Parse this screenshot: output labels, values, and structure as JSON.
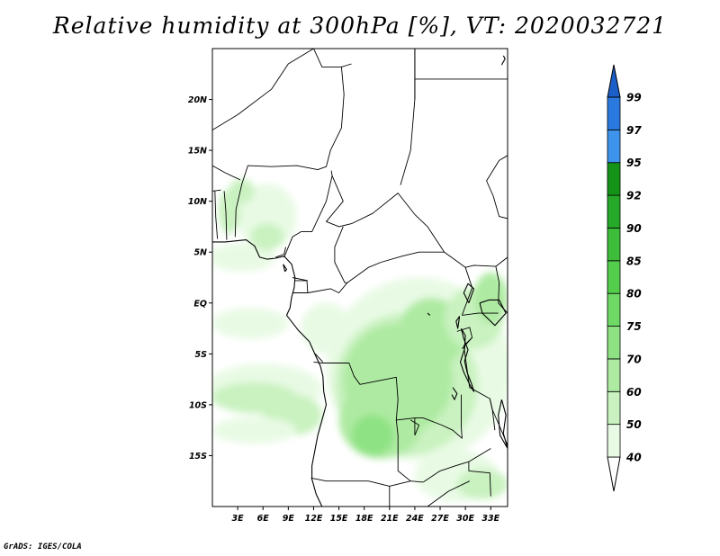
{
  "title": "Relative humidity at 300hPa [%], VT: 2020032721",
  "footer": "GrADS: IGES/COLA",
  "map": {
    "projection": "lat-lon",
    "lon_range": [
      0,
      35
    ],
    "lat_range": [
      -20,
      25
    ],
    "lat_ticks": [
      {
        "value": 20,
        "label": "20N"
      },
      {
        "value": 15,
        "label": "15N"
      },
      {
        "value": 10,
        "label": "10N"
      },
      {
        "value": 5,
        "label": "5N"
      },
      {
        "value": 0,
        "label": "EQ"
      },
      {
        "value": -5,
        "label": "5S"
      },
      {
        "value": -10,
        "label": "10S"
      },
      {
        "value": -15,
        "label": "15S"
      }
    ],
    "lon_ticks": [
      {
        "value": 3,
        "label": "3E"
      },
      {
        "value": 6,
        "label": "6E"
      },
      {
        "value": 9,
        "label": "9E"
      },
      {
        "value": 12,
        "label": "12E"
      },
      {
        "value": 15,
        "label": "15E"
      },
      {
        "value": 18,
        "label": "18E"
      },
      {
        "value": 21,
        "label": "21E"
      },
      {
        "value": 24,
        "label": "24E"
      },
      {
        "value": 27,
        "label": "27E"
      },
      {
        "value": 30,
        "label": "30E"
      },
      {
        "value": 33,
        "label": "33E"
      }
    ]
  },
  "colorbar": {
    "levels": [
      {
        "label": "40",
        "color": "#e8fae4"
      },
      {
        "label": "50",
        "color": "#c9f2c0"
      },
      {
        "label": "60",
        "color": "#aeeaa2"
      },
      {
        "label": "70",
        "color": "#8ee283"
      },
      {
        "label": "75",
        "color": "#6fd966"
      },
      {
        "label": "80",
        "color": "#54cc4c"
      },
      {
        "label": "85",
        "color": "#3dbd3a"
      },
      {
        "label": "90",
        "color": "#26a828"
      },
      {
        "label": "92",
        "color": "#159218"
      },
      {
        "label": "95",
        "color": "#3d94ea"
      },
      {
        "label": "97",
        "color": "#2a79de"
      },
      {
        "label": "99",
        "color": "#1c5fc8"
      }
    ],
    "below_color": "#ffffff",
    "above_color": "#1c5fc8"
  },
  "humidity_regions": [
    {
      "lon": 6.5,
      "lat": 8.5,
      "rx": 3.5,
      "ry": 3.2,
      "level": 0
    },
    {
      "lon": 3.5,
      "lat": 4.5,
      "rx": 4,
      "ry": 1.4,
      "level": 0
    },
    {
      "lon": 6.5,
      "lat": 6.5,
      "rx": 2,
      "ry": 1.3,
      "level": 1
    },
    {
      "lon": 2.0,
      "lat": 9.0,
      "rx": 1.3,
      "ry": 2.2,
      "level": 1
    },
    {
      "lon": 3.5,
      "lat": 11.0,
      "rx": 1.5,
      "ry": 1.2,
      "level": 1
    },
    {
      "lon": 24.5,
      "lat": -6.5,
      "rx": 11,
      "ry": 9,
      "level": 0
    },
    {
      "lon": 23,
      "lat": -8,
      "rx": 8.5,
      "ry": 7,
      "level": 1
    },
    {
      "lon": 22,
      "lat": -7.5,
      "rx": 6.5,
      "ry": 5.5,
      "level": 2
    },
    {
      "lon": 20,
      "lat": -11.5,
      "rx": 5,
      "ry": 3.8,
      "level": 2
    },
    {
      "lon": 26,
      "lat": -3,
      "rx": 4,
      "ry": 3.5,
      "level": 2
    },
    {
      "lon": 19,
      "lat": -13,
      "rx": 2.5,
      "ry": 2,
      "level": 3
    },
    {
      "lon": 31,
      "lat": -1.5,
      "rx": 3.5,
      "ry": 3,
      "level": 1
    },
    {
      "lon": 33,
      "lat": 0.5,
      "rx": 2,
      "ry": 2.5,
      "level": 2
    },
    {
      "lon": 6,
      "lat": -8.5,
      "rx": 7,
      "ry": 2.5,
      "level": 0
    },
    {
      "lon": 5,
      "lat": -9.3,
      "rx": 5,
      "ry": 1.5,
      "level": 1
    },
    {
      "lon": 9.5,
      "lat": -11,
      "rx": 3.5,
      "ry": 2,
      "level": 1
    },
    {
      "lon": 5,
      "lat": -12.5,
      "rx": 5,
      "ry": 1.3,
      "level": 0
    },
    {
      "lon": 13.5,
      "lat": -2.5,
      "rx": 3,
      "ry": 2.5,
      "level": 0
    },
    {
      "lon": 4.5,
      "lat": -2,
      "rx": 4.5,
      "ry": 1.5,
      "level": 0
    },
    {
      "lon": 29,
      "lat": -17,
      "rx": 5,
      "ry": 2.5,
      "level": 0
    },
    {
      "lon": 32,
      "lat": -17.8,
      "rx": 3,
      "ry": 1.5,
      "level": 1
    }
  ],
  "boundaries": [
    [
      [
        0,
        17
      ],
      [
        3,
        18.5
      ],
      [
        7,
        21
      ],
      [
        9,
        23.5
      ],
      [
        12,
        25
      ]
    ],
    [
      [
        12,
        25
      ],
      [
        13,
        23.2
      ],
      [
        15.3,
        23.2
      ],
      [
        16.5,
        23.5
      ]
    ],
    [
      [
        15.3,
        23.2
      ],
      [
        15.6,
        20.5
      ],
      [
        15.3,
        17.2
      ],
      [
        14,
        15
      ],
      [
        13.5,
        13.4
      ],
      [
        12.5,
        13.1
      ],
      [
        10,
        13.5
      ],
      [
        7,
        13.4
      ],
      [
        4.2,
        13.5
      ],
      [
        3.5,
        11.7
      ],
      [
        2.8,
        9.2
      ],
      [
        2.7,
        6.5
      ]
    ],
    [
      [
        0,
        13.5
      ],
      [
        1.5,
        12.8
      ],
      [
        3.3,
        12.1
      ]
    ],
    [
      [
        0,
        11
      ],
      [
        1,
        11.1
      ]
    ],
    [
      [
        0.3,
        11
      ],
      [
        0.4,
        8.5
      ],
      [
        0.6,
        6.3
      ]
    ],
    [
      [
        1.7,
        6.2
      ],
      [
        1.6,
        9
      ],
      [
        1.4,
        11
      ]
    ],
    [
      [
        8.5,
        4.5
      ],
      [
        9.5,
        6.5
      ],
      [
        10.5,
        7
      ],
      [
        11.8,
        7
      ],
      [
        13.5,
        10
      ],
      [
        14.2,
        12.5
      ],
      [
        14.1,
        13
      ]
    ],
    [
      [
        14.2,
        12.5
      ],
      [
        15.5,
        10
      ],
      [
        13.5,
        8
      ],
      [
        15,
        7.5
      ],
      [
        16.5,
        7.8
      ],
      [
        19,
        8.8
      ],
      [
        22,
        10.8
      ],
      [
        24,
        8.7
      ],
      [
        25.5,
        7.5
      ],
      [
        27.5,
        5
      ]
    ],
    [
      [
        15.5,
        7.5
      ],
      [
        14.5,
        5.5
      ],
      [
        14.5,
        4
      ],
      [
        15.7,
        2
      ],
      [
        16,
        2
      ]
    ],
    [
      [
        16,
        2
      ],
      [
        18.5,
        3.5
      ],
      [
        20,
        4
      ],
      [
        22.5,
        4.6
      ],
      [
        24.5,
        5
      ],
      [
        27.5,
        5
      ]
    ],
    [
      [
        16,
        2
      ],
      [
        15,
        1
      ],
      [
        14,
        1.4
      ],
      [
        11.3,
        1
      ]
    ],
    [
      [
        11.3,
        1
      ],
      [
        11.2,
        2.2
      ],
      [
        9.8,
        2.2
      ]
    ],
    [
      [
        9.5,
        1
      ],
      [
        11.3,
        1
      ]
    ],
    [
      [
        11.3,
        2.2
      ],
      [
        9.5,
        2.5
      ]
    ],
    [
      [
        22.3,
        11.6
      ],
      [
        23.5,
        15
      ],
      [
        24,
        20
      ],
      [
        24,
        25
      ]
    ],
    [
      [
        24,
        22
      ],
      [
        25,
        22
      ],
      [
        35,
        22
      ]
    ],
    [
      [
        24,
        20
      ],
      [
        24,
        25
      ]
    ],
    [
      [
        35,
        8.3
      ],
      [
        34,
        8.5
      ],
      [
        33.3,
        10.5
      ],
      [
        32.5,
        12
      ],
      [
        34,
        14
      ],
      [
        35,
        14.5
      ]
    ],
    [
      [
        27.5,
        5
      ],
      [
        30,
        3.5
      ],
      [
        31,
        3.7
      ],
      [
        33.6,
        3.6
      ],
      [
        35,
        4.5
      ]
    ],
    [
      [
        30,
        3.5
      ],
      [
        30.8,
        1.5
      ],
      [
        29.6,
        -1.2
      ]
    ],
    [
      [
        33.6,
        3.6
      ],
      [
        34,
        2
      ],
      [
        33.9,
        0
      ],
      [
        35,
        -1
      ]
    ],
    [
      [
        29.6,
        -1.2
      ],
      [
        30.6,
        -1.1
      ],
      [
        31.5,
        -1
      ],
      [
        33.9,
        -1
      ]
    ],
    [
      [
        29,
        -2.8
      ],
      [
        30.5,
        -2.4
      ],
      [
        30.8,
        -3.4
      ],
      [
        29.6,
        -4.5
      ]
    ],
    [
      [
        30.8,
        -3.4
      ],
      [
        29.8,
        -4.2
      ],
      [
        30.5,
        -8.3
      ],
      [
        32.9,
        -9.4
      ],
      [
        33.2,
        -10.5
      ],
      [
        33.5,
        -12.5
      ]
    ],
    [
      [
        12,
        -5.8
      ],
      [
        13,
        -5.9
      ],
      [
        16.2,
        -5.9
      ],
      [
        16.8,
        -7.2
      ],
      [
        17.5,
        -8
      ],
      [
        21.8,
        -7.3
      ],
      [
        22,
        -9.5
      ],
      [
        21.8,
        -11.5
      ],
      [
        24,
        -11.3
      ],
      [
        24,
        -13
      ]
    ],
    [
      [
        13.1,
        -5.8
      ],
      [
        12.2,
        -5
      ]
    ],
    [
      [
        11.7,
        -17.2
      ],
      [
        13.5,
        -17.5
      ],
      [
        18.5,
        -17.5
      ],
      [
        21,
        -18
      ],
      [
        23.5,
        -17.5
      ],
      [
        25,
        -17.6
      ]
    ],
    [
      [
        21.8,
        -11.5
      ],
      [
        22,
        -13
      ],
      [
        22,
        -16.5
      ],
      [
        23.5,
        -17.5
      ]
    ],
    [
      [
        25,
        -17.6
      ],
      [
        27,
        -16.5
      ],
      [
        28.8,
        -16
      ],
      [
        30.4,
        -15.6
      ],
      [
        33,
        -14.3
      ]
    ],
    [
      [
        24,
        -11.3
      ],
      [
        25,
        -11.3
      ],
      [
        27.2,
        -12
      ],
      [
        28.5,
        -12.5
      ],
      [
        29.6,
        -13.3
      ],
      [
        29.5,
        -12.2
      ],
      [
        29.5,
        -9
      ]
    ],
    [
      [
        30.4,
        -15.6
      ],
      [
        30.4,
        -16.5
      ],
      [
        32.9,
        -16.7
      ],
      [
        33,
        -19
      ]
    ],
    [
      [
        32.9,
        -9.4
      ],
      [
        33.2,
        -10.5
      ],
      [
        34,
        -12
      ],
      [
        35,
        -14
      ]
    ],
    [
      [
        21,
        -18
      ],
      [
        21,
        -22
      ]
    ],
    [
      [
        30.5,
        -17.5
      ],
      [
        28,
        -18.5
      ],
      [
        25.5,
        -20
      ]
    ],
    [
      [
        7.5,
        4.5
      ],
      [
        8.5,
        4.8
      ],
      [
        8.7,
        5.5
      ]
    ],
    [
      [
        24,
        -13
      ],
      [
        24.5,
        -12
      ],
      [
        23.5,
        -11.5
      ]
    ]
  ],
  "coastlines": [
    [
      [
        0,
        6
      ],
      [
        1.5,
        6
      ],
      [
        4,
        6.2
      ],
      [
        5,
        5.6
      ],
      [
        5.6,
        4.5
      ],
      [
        6.5,
        4.3
      ],
      [
        7.5,
        4.4
      ],
      [
        8.5,
        4.6
      ],
      [
        9.4,
        3.8
      ],
      [
        9.8,
        2.5
      ],
      [
        9.7,
        1.5
      ],
      [
        9.4,
        0.6
      ],
      [
        9.2,
        -0.5
      ],
      [
        8.8,
        -1.2
      ],
      [
        10.2,
        -2.7
      ],
      [
        11.5,
        -3.8
      ],
      [
        12.2,
        -5.1
      ],
      [
        12.8,
        -6.2
      ],
      [
        13.1,
        -7.2
      ],
      [
        13.2,
        -8.7
      ],
      [
        13.5,
        -10
      ],
      [
        12.5,
        -13
      ],
      [
        11.8,
        -16
      ],
      [
        11.8,
        -17.3
      ],
      [
        12.3,
        -18.8
      ],
      [
        13,
        -20
      ]
    ],
    [
      [
        29.5,
        -2.5
      ],
      [
        30,
        -3.2
      ],
      [
        29.9,
        -4.5
      ],
      [
        29.4,
        -5.8
      ],
      [
        29.8,
        -6.8
      ],
      [
        30.5,
        -8
      ],
      [
        31,
        -8.7
      ],
      [
        30.8,
        -8.1
      ],
      [
        30.2,
        -6.8
      ],
      [
        29.9,
        -5.7
      ],
      [
        30.3,
        -4.6
      ],
      [
        29.8,
        -3.5
      ],
      [
        29.5,
        -2.5
      ]
    ],
    [
      [
        29.3,
        -1.3
      ],
      [
        28.9,
        -1.8
      ],
      [
        29.1,
        -2.5
      ],
      [
        29.3,
        -1.3
      ]
    ],
    [
      [
        30.4,
        0
      ],
      [
        29.8,
        1
      ],
      [
        30.3,
        1.9
      ],
      [
        31,
        1.4
      ],
      [
        30.4,
        0
      ]
    ],
    [
      [
        31.7,
        0
      ],
      [
        32,
        -1
      ],
      [
        33.5,
        -2.2
      ],
      [
        34.8,
        -1
      ],
      [
        34,
        0.3
      ],
      [
        32.8,
        0.3
      ],
      [
        31.7,
        0
      ]
    ],
    [
      [
        34.3,
        -9.5
      ],
      [
        34.8,
        -11
      ],
      [
        34.5,
        -12.8
      ],
      [
        35,
        -14.3
      ],
      [
        34.1,
        -13
      ],
      [
        33.9,
        -11
      ],
      [
        34.3,
        -9.5
      ]
    ],
    [
      [
        28.5,
        -8.3
      ],
      [
        29,
        -8.9
      ],
      [
        28.7,
        -9.5
      ],
      [
        28.4,
        -9
      ]
    ],
    [
      [
        25.5,
        -1
      ],
      [
        25.8,
        -1.2
      ]
    ],
    [
      [
        8.4,
        3.8
      ],
      [
        8.8,
        3.3
      ],
      [
        8.6,
        3.1
      ],
      [
        8.4,
        3.8
      ]
    ],
    [
      [
        34.3,
        23.4
      ],
      [
        34.7,
        24
      ],
      [
        34.5,
        24.3
      ]
    ]
  ]
}
